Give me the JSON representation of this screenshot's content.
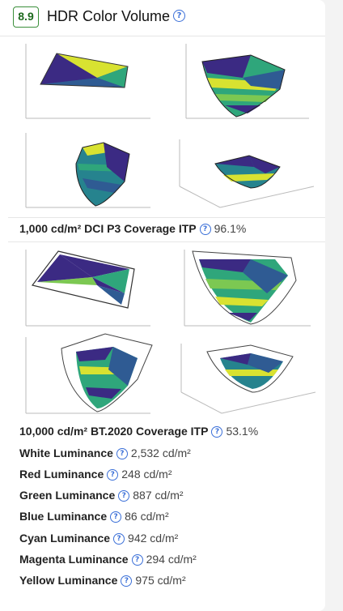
{
  "header": {
    "score": "8.9",
    "title": "HDR Color Volume"
  },
  "dci_p3": {
    "label": "1,000 cd/m² DCI P3 Coverage ITP",
    "value": "96.1%"
  },
  "bt2020": {
    "label": "10,000 cd/m² BT.2020 Coverage ITP",
    "value": "53.1%"
  },
  "luminance": [
    {
      "label": "White Luminance",
      "value": "2,532 cd/m²"
    },
    {
      "label": "Red Luminance",
      "value": "248 cd/m²"
    },
    {
      "label": "Green Luminance",
      "value": "887 cd/m²"
    },
    {
      "label": "Blue Luminance",
      "value": "86 cd/m²"
    },
    {
      "label": "Cyan Luminance",
      "value": "942 cd/m²"
    },
    {
      "label": "Magenta Luminance",
      "value": "294 cd/m²"
    },
    {
      "label": "Yellow Luminance",
      "value": "975 cd/m²"
    }
  ],
  "colors": {
    "score_border": "#3b8f3b",
    "help_icon": "#3a6fd8",
    "viridis": [
      "#3b2a83",
      "#2f5b93",
      "#26838e",
      "#2fa67b",
      "#7cc852",
      "#d8e231"
    ]
  }
}
